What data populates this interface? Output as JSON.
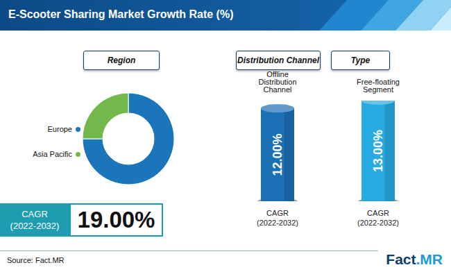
{
  "title": "E-Scooter Sharing Market Growth Rate (%)",
  "chart_data": [
    {
      "type": "pie",
      "title": "Region",
      "categories": [
        "Europe",
        "Asia Pacific"
      ],
      "values": [
        75,
        25
      ],
      "colors": [
        "#1b75bb",
        "#72b84a"
      ],
      "legend": "left"
    },
    {
      "type": "bar",
      "title": "Distribution Channel",
      "categories": [
        "Offline Distribution Channel"
      ],
      "values": [
        12
      ],
      "value_labels": [
        "12.00%"
      ],
      "data_labels": true,
      "color": "#1b6fb5",
      "xlabel": "CAGR (2022-2032)",
      "tick_labels": "x"
    },
    {
      "type": "bar",
      "title": "Type",
      "categories": [
        "Free-floating Segment"
      ],
      "values": [
        13
      ],
      "value_labels": [
        "13.00%"
      ],
      "data_labels": true,
      "color": "#27aae1",
      "xlabel": "CAGR (2022-2032)",
      "tick_labels": "x"
    }
  ],
  "summary": {
    "label": "CAGR (2022-2032)",
    "value": 19,
    "value_label": "19.00%"
  },
  "source": "Source: Fact.MR",
  "logo": "Fact.MR"
}
